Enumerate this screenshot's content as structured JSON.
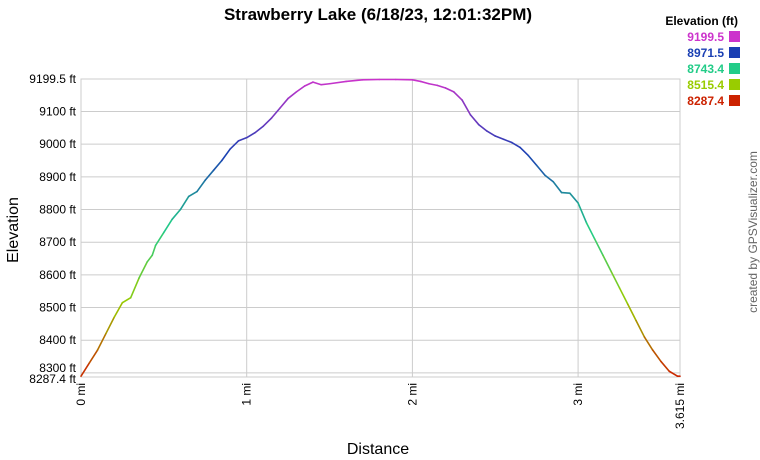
{
  "chart_data": {
    "type": "line",
    "title": "Strawberry Lake (6/18/23, 12:01:32PM)",
    "xlabel": "Distance",
    "ylabel": "Elevation",
    "x_unit": "mi",
    "y_unit": "ft",
    "xlim": [
      0,
      3.615
    ],
    "ylim": [
      8287.4,
      9199.5
    ],
    "x_ticks": [
      "0 mi",
      "1 mi",
      "2 mi",
      "3 mi",
      "3.615 mi"
    ],
    "y_ticks": [
      "8287.4 ft",
      "8300 ft",
      "8400 ft",
      "8500 ft",
      "8600 ft",
      "8700 ft",
      "8800 ft",
      "8900 ft",
      "9000 ft",
      "9100 ft",
      "9199.5 ft"
    ],
    "grid": true,
    "legend_position": "top-right",
    "legend": {
      "title": "Elevation (ft)",
      "entries": [
        {
          "label": "9199.5",
          "color": "#cc33cc"
        },
        {
          "label": "8971.5",
          "color": "#1a3fb3"
        },
        {
          "label": "8743.4",
          "color": "#22cc88"
        },
        {
          "label": "8515.4",
          "color": "#99cc00"
        },
        {
          "label": "8287.4",
          "color": "#cc2200"
        }
      ]
    },
    "credit": "created by GPSVisualizer.com",
    "series": [
      {
        "x": [
          0,
          0.05,
          0.1,
          0.15,
          0.2,
          0.25,
          0.3,
          0.35,
          0.4,
          0.43,
          0.45,
          0.5,
          0.55,
          0.6,
          0.65,
          0.7,
          0.75,
          0.8,
          0.85,
          0.9,
          0.95,
          1.0,
          1.05,
          1.1,
          1.15,
          1.2,
          1.25,
          1.3,
          1.35,
          1.4,
          1.45,
          1.5,
          1.6,
          1.7,
          1.8,
          1.9,
          2.0,
          2.05,
          2.1,
          2.15,
          2.2,
          2.25,
          2.3,
          2.35,
          2.4,
          2.45,
          2.5,
          2.55,
          2.6,
          2.65,
          2.7,
          2.75,
          2.8,
          2.85,
          2.9,
          2.95,
          3.0,
          3.05,
          3.1,
          3.15,
          3.2,
          3.25,
          3.3,
          3.35,
          3.4,
          3.45,
          3.5,
          3.55,
          3.6,
          3.615
        ],
        "y": [
          8290,
          8330,
          8370,
          8420,
          8470,
          8515,
          8530,
          8590,
          8640,
          8660,
          8690,
          8730,
          8770,
          8800,
          8840,
          8855,
          8890,
          8920,
          8950,
          8985,
          9010,
          9020,
          9035,
          9055,
          9080,
          9110,
          9140,
          9160,
          9178,
          9190,
          9182,
          9185,
          9192,
          9197,
          9198,
          9198,
          9197,
          9192,
          9185,
          9180,
          9172,
          9160,
          9135,
          9090,
          9060,
          9040,
          9025,
          9015,
          9005,
          8990,
          8965,
          8935,
          8905,
          8885,
          8852,
          8850,
          8820,
          8760,
          8710,
          8660,
          8610,
          8560,
          8510,
          8460,
          8410,
          8370,
          8335,
          8305,
          8290,
          8290
        ]
      }
    ]
  }
}
